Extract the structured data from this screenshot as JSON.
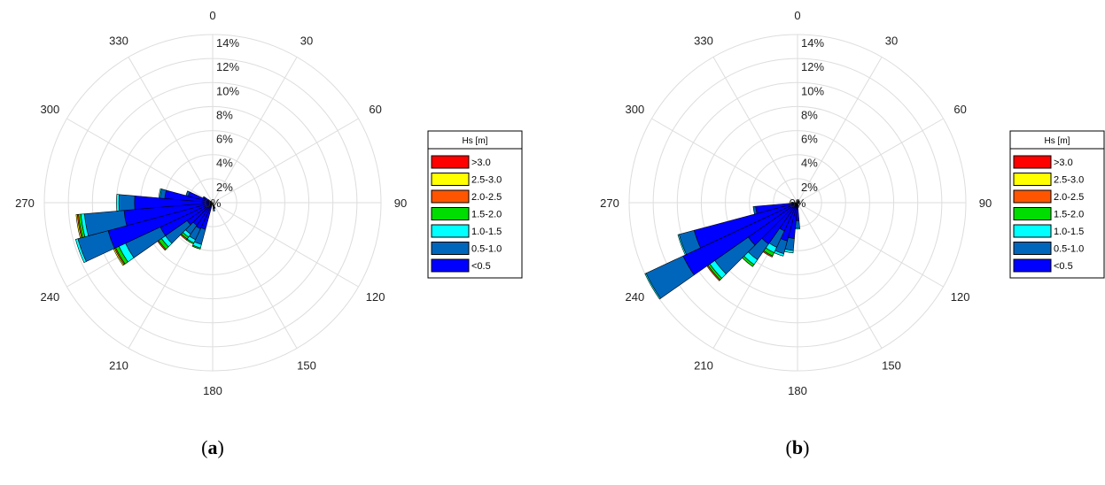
{
  "chart_data": [
    {
      "type": "windrose",
      "caption": "a",
      "angles": [
        0,
        30,
        60,
        90,
        120,
        150,
        180,
        210,
        240,
        270,
        300,
        330
      ],
      "radial_labels": [
        "2%",
        "4%",
        "6%",
        "8%",
        "10%",
        "12%",
        "14%"
      ],
      "rlim": [
        0,
        14
      ],
      "legend_title": "Hs [m]",
      "classes": [
        "<0.5",
        "0.5-1.0",
        "1.0-1.5",
        "1.5-2.0",
        "2.0-2.5",
        "2.5-3.0",
        ">3.0"
      ],
      "colors": [
        "#0000ff",
        "#0066bb",
        "#00ffff",
        "#00dd00",
        "#ff5500",
        "#ffff00",
        "#ff0000"
      ],
      "series": [
        {
          "direction": 160,
          "values": [
            0.4,
            0.1,
            0,
            0,
            0,
            0,
            0
          ]
        },
        {
          "direction": 170,
          "values": [
            0.5,
            0.2,
            0,
            0,
            0,
            0,
            0
          ]
        },
        {
          "direction": 200,
          "values": [
            2.3,
            1.3,
            0.3,
            0.1,
            0,
            0,
            0
          ]
        },
        {
          "direction": 210,
          "values": [
            2.4,
            1.0,
            0.3,
            0.1,
            0,
            0,
            0
          ]
        },
        {
          "direction": 220,
          "values": [
            2.3,
            0.9,
            0.3,
            0.2,
            0.1,
            0,
            0
          ]
        },
        {
          "direction": 230,
          "values": [
            2.6,
            2.2,
            0.4,
            0.3,
            0.1,
            0,
            0
          ]
        },
        {
          "direction": 240,
          "values": [
            4.8,
            3.2,
            0.6,
            0.3,
            0.1,
            0.1,
            0
          ]
        },
        {
          "direction": 250,
          "values": [
            9.0,
            2.6,
            0.2,
            0,
            0,
            0,
            0
          ]
        },
        {
          "direction": 260,
          "values": [
            7.4,
            3.3,
            0.3,
            0.2,
            0.1,
            0.1,
            0
          ]
        },
        {
          "direction": 270,
          "values": [
            6.5,
            1.3,
            0.2,
            0,
            0,
            0,
            0
          ]
        },
        {
          "direction": 280,
          "values": [
            4.0,
            0.4,
            0.1,
            0,
            0,
            0,
            0
          ]
        },
        {
          "direction": 290,
          "values": [
            2.1,
            0.2,
            0,
            0,
            0,
            0,
            0
          ]
        },
        {
          "direction": 300,
          "values": [
            0.8,
            0.1,
            0,
            0,
            0,
            0,
            0
          ]
        }
      ]
    },
    {
      "type": "windrose",
      "caption": "b",
      "angles": [
        0,
        30,
        60,
        90,
        120,
        150,
        180,
        210,
        240,
        270,
        300,
        330
      ],
      "radial_labels": [
        "2%",
        "4%",
        "6%",
        "8%",
        "10%",
        "12%",
        "14%"
      ],
      "rlim": [
        0,
        14
      ],
      "legend_title": "Hs [m]",
      "classes": [
        "<0.5",
        "0.5-1.0",
        "1.0-1.5",
        "1.5-2.0",
        "2.0-2.5",
        "2.5-3.0",
        ">3.0"
      ],
      "colors": [
        "#0000ff",
        "#0066bb",
        "#00ffff",
        "#00dd00",
        "#ff5500",
        "#ffff00",
        "#ff0000"
      ],
      "series": [
        {
          "direction": 170,
          "values": [
            0.3,
            0.1,
            0,
            0,
            0,
            0,
            0
          ]
        },
        {
          "direction": 180,
          "values": [
            1.5,
            0.6,
            0.1,
            0,
            0,
            0,
            0
          ]
        },
        {
          "direction": 190,
          "values": [
            3.0,
            1.0,
            0.2,
            0,
            0,
            0,
            0
          ]
        },
        {
          "direction": 200,
          "values": [
            3.3,
            1.1,
            0.2,
            0,
            0,
            0,
            0
          ]
        },
        {
          "direction": 210,
          "values": [
            2.6,
            1.5,
            0.5,
            0.3,
            0.1,
            0,
            0
          ]
        },
        {
          "direction": 220,
          "values": [
            4.2,
            1.6,
            0.5,
            0.2,
            0,
            0,
            0
          ]
        },
        {
          "direction": 230,
          "values": [
            5.0,
            3.4,
            0.5,
            0.2,
            0.1,
            0,
            0
          ]
        },
        {
          "direction": 240,
          "values": [
            10.5,
            3.4,
            0.1,
            0,
            0,
            0,
            0
          ]
        },
        {
          "direction": 250,
          "values": [
            8.9,
            1.3,
            0.1,
            0,
            0,
            0,
            0
          ]
        },
        {
          "direction": 260,
          "values": [
            3.5,
            0.2,
            0,
            0,
            0,
            0,
            0
          ]
        },
        {
          "direction": 270,
          "values": [
            0.4,
            0.1,
            0,
            0,
            0,
            0,
            0
          ]
        },
        {
          "direction": 0,
          "values": [
            0.2,
            0,
            0,
            0,
            0,
            0,
            0
          ]
        },
        {
          "direction": 30,
          "values": [
            0.2,
            0,
            0,
            0,
            0,
            0,
            0
          ]
        },
        {
          "direction": 60,
          "values": [
            0.2,
            0,
            0,
            0,
            0,
            0,
            0
          ]
        },
        {
          "direction": 90,
          "values": [
            0.2,
            0,
            0,
            0,
            0,
            0,
            0
          ]
        },
        {
          "direction": 120,
          "values": [
            0.2,
            0,
            0,
            0,
            0,
            0,
            0
          ]
        }
      ]
    }
  ],
  "legend_labels": [
    ">3.0",
    "2.5-3.0",
    "2.0-2.5",
    "1.5-2.0",
    "1.0-1.5",
    "0.5-1.0",
    "<0.5"
  ],
  "legend_colors": [
    "#ff0000",
    "#ffff00",
    "#ff5500",
    "#00dd00",
    "#00ffff",
    "#0066bb",
    "#0000ff"
  ],
  "center_label": "0%"
}
